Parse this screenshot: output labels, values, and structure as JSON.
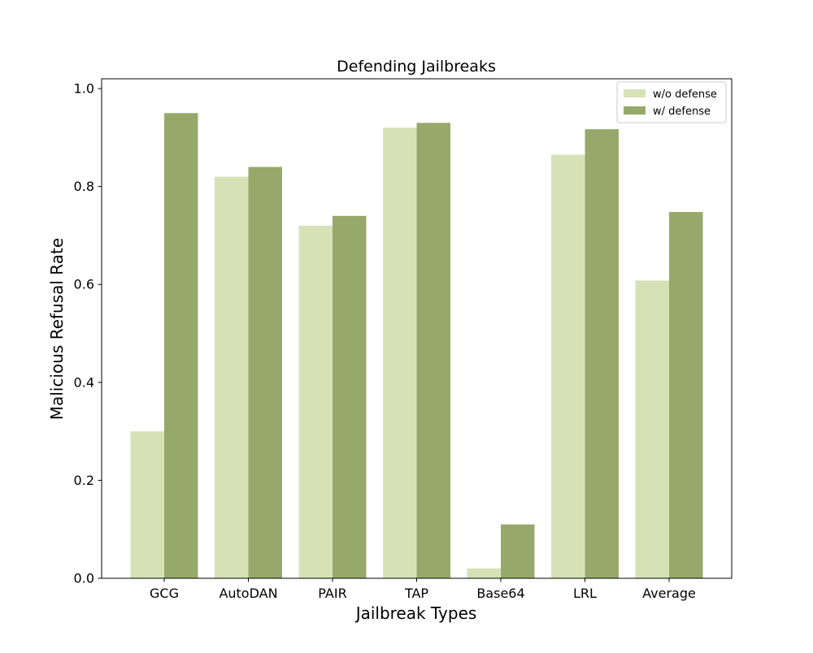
{
  "chart_data": {
    "type": "bar",
    "title": "Defending Jailbreaks",
    "xlabel": "Jailbreak Types",
    "ylabel": "Malicious Refusal Rate",
    "categories": [
      "GCG",
      "AutoDAN",
      "PAIR",
      "TAP",
      "Base64",
      "LRL",
      "Average"
    ],
    "series": [
      {
        "name": "w/o defense",
        "color": "#d6e2b6",
        "values": [
          0.3,
          0.82,
          0.72,
          0.92,
          0.02,
          0.865,
          0.608
        ]
      },
      {
        "name": "w/ defense",
        "color": "#97a96a",
        "values": [
          0.95,
          0.84,
          0.74,
          0.93,
          0.11,
          0.917,
          0.748
        ]
      }
    ],
    "ylim": [
      0,
      1.02
    ],
    "yticks": [
      "0.0",
      "0.2",
      "0.4",
      "0.6",
      "0.8",
      "1.0"
    ],
    "grid": false,
    "legend_position": "top-right"
  }
}
